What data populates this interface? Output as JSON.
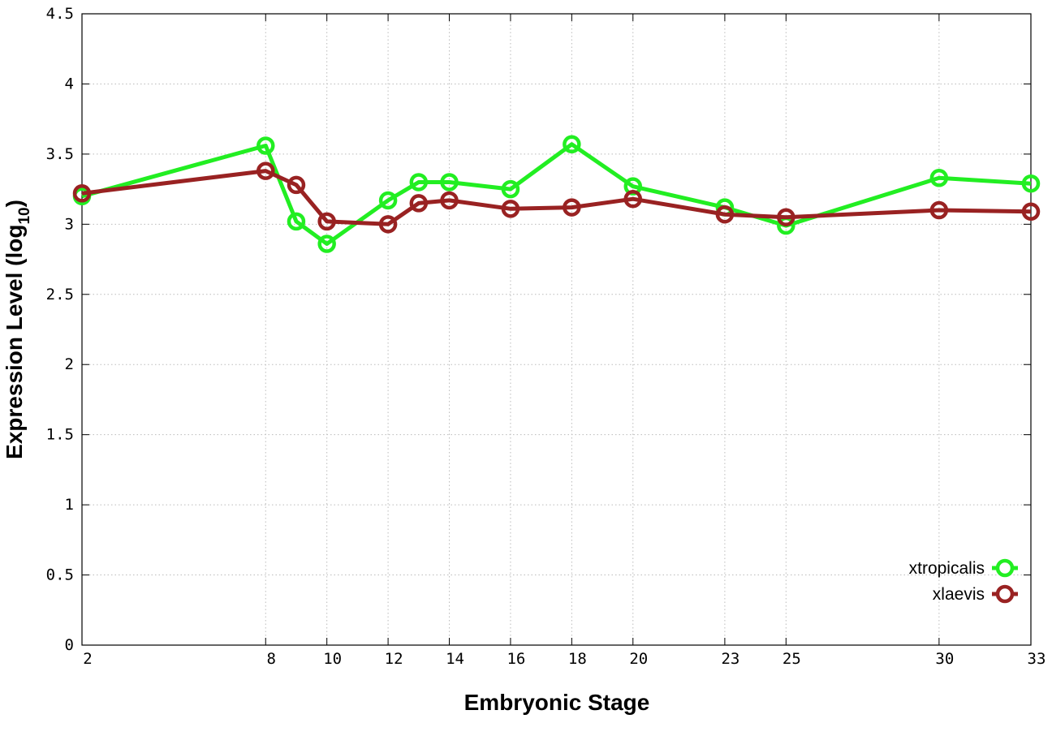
{
  "chart_data": {
    "type": "line",
    "xlabel": "Embryonic Stage",
    "ylabel": {
      "main": "Expression Level (log",
      "subscript": "10",
      "close": ")"
    },
    "x": [
      2,
      8,
      9,
      10,
      12,
      13,
      14,
      16,
      18,
      20,
      23,
      25,
      30,
      33
    ],
    "x_tick_labels": [
      "2",
      "8",
      "10",
      "12",
      "14",
      "16",
      "18",
      "20",
      "23",
      "25",
      "30",
      "33"
    ],
    "x_tick_values": [
      2,
      8,
      10,
      12,
      14,
      16,
      18,
      20,
      23,
      25,
      30,
      33
    ],
    "xlim": [
      2,
      33
    ],
    "ylim": [
      0,
      4.5
    ],
    "y_tick_labels": [
      "0",
      "0.5",
      "1",
      "1.5",
      "2",
      "2.5",
      "3",
      "3.5",
      "4",
      "4.5"
    ],
    "y_tick_values": [
      0,
      0.5,
      1,
      1.5,
      2,
      2.5,
      3,
      3.5,
      4,
      4.5
    ],
    "grid": true,
    "legend_position": "bottom-right",
    "series": [
      {
        "name": "xtropicalis",
        "color": "#22ee22",
        "values": [
          3.2,
          3.56,
          3.02,
          2.86,
          3.17,
          3.3,
          3.3,
          3.25,
          3.57,
          3.27,
          3.12,
          2.99,
          3.33,
          3.29
        ]
      },
      {
        "name": "xlaevis",
        "color": "#992222",
        "values": [
          3.22,
          3.38,
          3.28,
          3.02,
          3.0,
          3.15,
          3.17,
          3.11,
          3.12,
          3.18,
          3.07,
          3.05,
          3.1,
          3.09
        ]
      }
    ]
  }
}
